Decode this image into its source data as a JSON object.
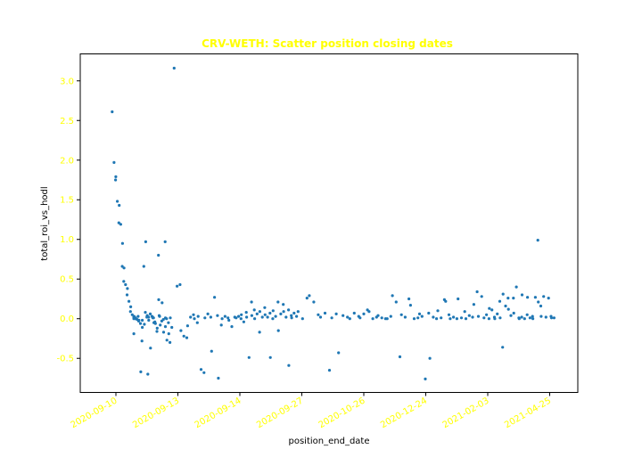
{
  "chart_data": {
    "type": "scatter",
    "title": "CRV-WETH: Scatter position closing dates",
    "xlabel": "position_end_date",
    "ylabel": "total_roi_vs_hodl",
    "x_ticks": [
      "2020-09-10",
      "2020-09-13",
      "2020-09-14",
      "2020-09-27",
      "2020-10-26",
      "2020-12-24",
      "2021-02-03",
      "2021-04-25"
    ],
    "y_ticks": [
      -0.5,
      0.0,
      0.5,
      1.0,
      1.5,
      2.0,
      2.5,
      3.0
    ],
    "ylim": [
      -0.93,
      3.34
    ],
    "grid": false,
    "colors": {
      "points": "#1f77b4",
      "title": "#ffff00",
      "ticks": "#ffff00"
    },
    "points": [
      [
        "2020-09-10",
        2.61
      ],
      [
        "2020-09-10",
        1.97
      ],
      [
        "2020-09-10",
        1.79
      ],
      [
        "2020-09-10",
        1.75
      ],
      [
        "2020-09-10",
        1.48
      ],
      [
        "2020-09-10",
        1.43
      ],
      [
        "2020-09-10",
        1.21
      ],
      [
        "2020-09-10",
        1.19
      ],
      [
        "2020-09-10",
        0.95
      ],
      [
        "2020-09-10",
        0.66
      ],
      [
        "2020-09-10",
        0.64
      ],
      [
        "2020-09-10",
        0.47
      ],
      [
        "2020-09-10",
        0.43
      ],
      [
        "2020-09-10",
        0.38
      ],
      [
        "2020-09-10",
        0.3
      ],
      [
        "2020-09-10",
        0.22
      ],
      [
        "2020-09-10",
        0.15
      ],
      [
        "2020-09-10",
        0.09
      ],
      [
        "2020-09-10",
        0.05
      ],
      [
        "2020-09-10",
        0.03
      ],
      [
        "2020-09-10",
        0.02
      ],
      [
        "2020-09-10",
        0.01
      ],
      [
        "2020-09-10",
        0.0
      ],
      [
        "2020-09-10",
        -0.01
      ],
      [
        "2020-09-10",
        -0.02
      ],
      [
        "2020-09-10",
        -0.03
      ],
      [
        "2020-09-10",
        -0.06
      ],
      [
        "2020-09-10",
        -0.11
      ],
      [
        "2020-09-10",
        -0.28
      ],
      [
        "2020-09-10",
        0.66
      ],
      [
        "2020-09-10",
        0.97
      ],
      [
        "2020-09-10",
        0.08
      ],
      [
        "2020-09-10",
        0.04
      ],
      [
        "2020-09-10",
        0.02
      ],
      [
        "2020-09-10",
        -0.02
      ],
      [
        "2020-09-10",
        -0.37
      ],
      [
        "2020-09-10",
        0.06
      ],
      [
        "2020-09-10",
        0.03
      ],
      [
        "2020-09-10",
        -0.05
      ],
      [
        "2020-09-10",
        0.01
      ],
      [
        "2020-09-10",
        -0.06
      ],
      [
        "2020-09-10",
        -0.12
      ],
      [
        "2020-09-10",
        -0.16
      ],
      [
        "2020-09-10",
        0.24
      ],
      [
        "2020-09-10",
        0.8
      ],
      [
        "2020-09-10",
        -0.08
      ],
      [
        "2020-09-10",
        0.2
      ],
      [
        "2020-09-10",
        -0.03
      ],
      [
        "2020-09-10",
        -0.17
      ],
      [
        "2020-09-10",
        -0.1
      ],
      [
        "2020-09-10",
        0.97
      ],
      [
        "2020-09-10",
        -0.27
      ],
      [
        "2020-09-10",
        -0.19
      ],
      [
        "2020-09-10",
        -0.05
      ],
      [
        "2020-09-10",
        0.01
      ],
      [
        "2020-09-10",
        -0.3
      ],
      [
        "2020-09-10",
        -0.11
      ],
      [
        "2020-09-11",
        0.0
      ],
      [
        "2020-09-11",
        0.03
      ],
      [
        "2020-09-11",
        -0.02
      ],
      [
        "2020-09-11",
        -0.07
      ],
      [
        "2020-09-11",
        0.02
      ],
      [
        "2020-09-11",
        0.01
      ],
      [
        "2020-09-11",
        -0.04
      ],
      [
        "2020-09-11",
        0.04
      ],
      [
        "2020-09-11",
        -0.01
      ],
      [
        "2020-09-11",
        0.01
      ],
      [
        "2020-09-12",
        -0.19
      ],
      [
        "2020-09-12",
        -0.67
      ],
      [
        "2020-09-12",
        -0.7
      ],
      [
        "2020-09-12",
        0.02
      ],
      [
        "2020-09-12",
        0.03
      ],
      [
        "2020-09-12",
        0.0
      ],
      [
        "2020-09-13",
        3.16
      ],
      [
        "2020-09-13",
        0.41
      ],
      [
        "2020-09-13",
        0.43
      ],
      [
        "2020-09-13",
        -0.15
      ],
      [
        "2020-09-13",
        -0.22
      ],
      [
        "2020-09-13",
        -0.24
      ],
      [
        "2020-09-13",
        -0.09
      ],
      [
        "2020-09-13",
        0.02
      ],
      [
        "2020-09-13",
        0.05
      ],
      [
        "2020-09-13",
        0.0
      ],
      [
        "2020-09-13",
        -0.05
      ],
      [
        "2020-09-13",
        0.03
      ],
      [
        "2020-09-13",
        -0.64
      ],
      [
        "2020-09-13",
        -0.68
      ],
      [
        "2020-09-13",
        0.01
      ],
      [
        "2020-09-13",
        0.06
      ],
      [
        "2020-09-13",
        0.02
      ],
      [
        "2020-09-13",
        -0.41
      ],
      [
        "2020-09-13",
        0.27
      ],
      [
        "2020-09-13",
        0.04
      ],
      [
        "2020-09-13",
        -0.75
      ],
      [
        "2020-09-13",
        -0.08
      ],
      [
        "2020-09-13",
        0.0
      ],
      [
        "2020-09-13",
        0.03
      ],
      [
        "2020-09-13",
        0.01
      ],
      [
        "2020-09-13",
        -0.02
      ],
      [
        "2020-09-13",
        -0.1
      ],
      [
        "2020-09-13",
        0.02
      ],
      [
        "2020-09-14",
        0.01
      ],
      [
        "2020-09-14",
        0.03
      ],
      [
        "2020-09-14",
        0.0
      ],
      [
        "2020-09-14",
        0.05
      ],
      [
        "2020-09-14",
        -0.04
      ],
      [
        "2020-09-14",
        0.08
      ],
      [
        "2020-09-14",
        0.02
      ],
      [
        "2020-09-14",
        -0.49
      ],
      [
        "2020-09-14",
        0.21
      ],
      [
        "2020-09-14",
        0.04
      ],
      [
        "2020-09-14",
        0.11
      ],
      [
        "2020-09-14",
        0.0
      ],
      [
        "2020-09-14",
        0.06
      ],
      [
        "2020-09-14",
        -0.17
      ],
      [
        "2020-09-14",
        0.09
      ],
      [
        "2020-09-14",
        0.02
      ],
      [
        "2020-09-14",
        0.14
      ],
      [
        "2020-09-14",
        0.05
      ],
      [
        "2020-09-14",
        0.02
      ],
      [
        "2020-09-14",
        0.07
      ],
      [
        "2020-09-14",
        -0.49
      ],
      [
        "2020-09-14",
        0.0
      ],
      [
        "2020-09-14",
        0.1
      ],
      [
        "2020-09-14",
        0.03
      ],
      [
        "2020-09-14",
        0.21
      ],
      [
        "2020-09-14",
        -0.15
      ],
      [
        "2020-09-14",
        0.06
      ],
      [
        "2020-09-14",
        0.18
      ],
      [
        "2020-09-14",
        0.09
      ],
      [
        "2020-09-14",
        0.02
      ],
      [
        "2020-09-14",
        0.11
      ],
      [
        "2020-09-14",
        -0.59
      ],
      [
        "2020-09-14",
        0.04
      ],
      [
        "2020-09-14",
        0.01
      ],
      [
        "2020-09-14",
        0.07
      ],
      [
        "2020-09-14",
        0.03
      ],
      [
        "2020-09-27",
        0.09
      ],
      [
        "2020-09-27",
        0.0
      ],
      [
        "2020-09-27",
        0.26
      ],
      [
        "2020-09-27",
        0.29
      ],
      [
        "2020-09-27",
        0.21
      ],
      [
        "2020-09-27",
        0.05
      ],
      [
        "2020-09-27",
        0.02
      ],
      [
        "2020-09-27",
        0.07
      ],
      [
        "2020-09-27",
        -0.65
      ],
      [
        "2020-09-27",
        0.01
      ],
      [
        "2020-09-27",
        0.06
      ],
      [
        "2020-09-27",
        -0.43
      ],
      [
        "2020-09-27",
        0.04
      ],
      [
        "2020-09-27",
        0.02
      ],
      [
        "2020-09-27",
        0.0
      ],
      [
        "2020-09-27",
        0.07
      ],
      [
        "2020-09-27",
        0.03
      ],
      [
        "2020-10-26",
        0.01
      ],
      [
        "2020-10-26",
        0.06
      ],
      [
        "2020-10-26",
        0.11
      ],
      [
        "2020-10-26",
        0.09
      ],
      [
        "2020-10-26",
        0.0
      ],
      [
        "2020-10-26",
        0.02
      ],
      [
        "2020-10-26",
        0.04
      ],
      [
        "2020-10-26",
        0.01
      ],
      [
        "2020-10-26",
        0.0
      ],
      [
        "2020-10-26",
        0.0
      ],
      [
        "2020-10-26",
        0.03
      ],
      [
        "2020-10-26",
        0.29
      ],
      [
        "2020-10-26",
        0.21
      ],
      [
        "2020-10-26",
        -0.48
      ],
      [
        "2020-10-26",
        0.05
      ],
      [
        "2020-10-26",
        0.02
      ],
      [
        "2020-10-26",
        0.25
      ],
      [
        "2020-10-26",
        0.17
      ],
      [
        "2020-10-26",
        0.0
      ],
      [
        "2020-10-26",
        0.01
      ],
      [
        "2020-10-26",
        0.06
      ],
      [
        "2020-12-24",
        0.03
      ],
      [
        "2020-12-24",
        -0.76
      ],
      [
        "2020-12-24",
        0.07
      ],
      [
        "2020-12-24",
        -0.5
      ],
      [
        "2020-12-24",
        0.02
      ],
      [
        "2020-12-24",
        0.0
      ],
      [
        "2020-12-24",
        0.1
      ],
      [
        "2020-12-24",
        0.01
      ],
      [
        "2020-12-24",
        0.24
      ],
      [
        "2020-12-24",
        0.22
      ],
      [
        "2020-12-24",
        0.05
      ],
      [
        "2020-12-24",
        0.0
      ],
      [
        "2020-12-24",
        0.02
      ],
      [
        "2020-12-24",
        0.0
      ],
      [
        "2020-12-24",
        0.25
      ],
      [
        "2020-12-24",
        0.01
      ],
      [
        "2020-12-24",
        0.09
      ],
      [
        "2020-12-24",
        0.0
      ],
      [
        "2020-12-24",
        0.04
      ],
      [
        "2020-12-24",
        0.02
      ],
      [
        "2020-12-24",
        0.18
      ],
      [
        "2020-12-24",
        0.34
      ],
      [
        "2020-12-24",
        0.03
      ],
      [
        "2020-12-24",
        0.28
      ],
      [
        "2021-02-03",
        0.01
      ],
      [
        "2021-02-03",
        0.05
      ],
      [
        "2021-02-03",
        0.0
      ],
      [
        "2021-02-03",
        0.13
      ],
      [
        "2021-02-03",
        0.11
      ],
      [
        "2021-02-03",
        0.02
      ],
      [
        "2021-02-03",
        0.0
      ],
      [
        "2021-02-03",
        0.06
      ],
      [
        "2021-02-03",
        0.22
      ],
      [
        "2021-02-03",
        0.01
      ],
      [
        "2021-02-03",
        -0.36
      ],
      [
        "2021-02-03",
        0.31
      ],
      [
        "2021-02-03",
        0.16
      ],
      [
        "2021-02-03",
        0.26
      ],
      [
        "2021-02-03",
        0.12
      ],
      [
        "2021-02-03",
        0.04
      ],
      [
        "2021-02-03",
        0.26
      ],
      [
        "2021-02-03",
        0.07
      ],
      [
        "2021-02-03",
        0.4
      ],
      [
        "2021-02-03",
        0.01
      ],
      [
        "2021-02-03",
        0.0
      ],
      [
        "2021-02-03",
        0.02
      ],
      [
        "2021-02-03",
        0.3
      ],
      [
        "2021-02-03",
        0.0
      ],
      [
        "2021-02-03",
        0.05
      ],
      [
        "2021-02-03",
        0.27
      ],
      [
        "2021-02-03",
        0.01
      ],
      [
        "2021-02-03",
        0.03
      ],
      [
        "2021-02-03",
        0.0
      ],
      [
        "2021-02-03",
        0.27
      ],
      [
        "2021-02-03",
        0.99
      ],
      [
        "2021-02-03",
        0.21
      ],
      [
        "2021-02-03",
        0.16
      ],
      [
        "2021-02-03",
        0.03
      ],
      [
        "2021-02-03",
        0.28
      ],
      [
        "2021-04-25",
        0.02
      ],
      [
        "2021-04-25",
        0.26
      ],
      [
        "2021-04-25",
        0.03
      ],
      [
        "2021-04-25",
        0.01
      ],
      [
        "2021-04-25",
        0.01
      ]
    ]
  }
}
